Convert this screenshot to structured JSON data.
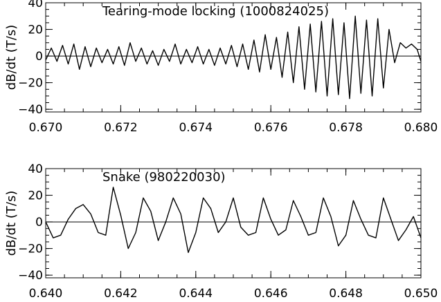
{
  "chart_data": [
    {
      "type": "line",
      "title": "Tearing-mode locking (1000824025)",
      "ylabel": "dB/dt (T/s)",
      "xlabel": "",
      "xlim": [
        0.67,
        0.68
      ],
      "ylim": [
        -42,
        40
      ],
      "yticks": [
        -40,
        -20,
        0,
        20,
        40
      ],
      "xticks": [
        0.67,
        0.672,
        0.674,
        0.676,
        0.678,
        0.68
      ],
      "xtick_labels": [
        "0.670",
        "0.672",
        "0.674",
        "0.676",
        "0.678",
        "0.680"
      ],
      "ytick_labels": [
        "−40",
        "−20",
        "0",
        "20",
        "40"
      ],
      "zero_line": true,
      "grid": false,
      "series": [
        {
          "x": [
            0.67,
            0.67015,
            0.6703,
            0.67045,
            0.6706,
            0.67075,
            0.6709,
            0.67105,
            0.6712,
            0.67135,
            0.6715,
            0.67165,
            0.6718,
            0.67195,
            0.6721,
            0.67225,
            0.6724,
            0.67255,
            0.6727,
            0.67285,
            0.673,
            0.67315,
            0.6733,
            0.67345,
            0.6736,
            0.67375,
            0.6739,
            0.67405,
            0.6742,
            0.67435,
            0.6745,
            0.67465,
            0.6748,
            0.67495,
            0.6751,
            0.67525,
            0.6754,
            0.67555,
            0.6757,
            0.67585,
            0.676,
            0.67615,
            0.6763,
            0.67645,
            0.6766,
            0.67675,
            0.6769,
            0.67705,
            0.6772,
            0.67735,
            0.6775,
            0.67765,
            0.6778,
            0.67795,
            0.6781,
            0.67825,
            0.6784,
            0.67855,
            0.6787,
            0.67885,
            0.679,
            0.67915,
            0.6793,
            0.67945,
            0.6796,
            0.67975,
            0.6799,
            0.68
          ],
          "values": [
            -3,
            6,
            -4,
            8,
            -6,
            9,
            -10,
            7,
            -8,
            6,
            -5,
            5,
            -6,
            7,
            -7,
            10,
            -4,
            6,
            -6,
            4,
            -7,
            5,
            -4,
            9,
            -6,
            5,
            -5,
            7,
            -6,
            5,
            -7,
            6,
            -6,
            8,
            -8,
            9,
            -10,
            12,
            -12,
            16,
            -10,
            14,
            -16,
            18,
            -20,
            22,
            -25,
            24,
            -27,
            26,
            -30,
            28,
            -29,
            25,
            -32,
            30,
            -28,
            27,
            -30,
            28,
            -24,
            20,
            -5,
            10,
            6,
            9,
            5,
            -4
          ]
        }
      ]
    },
    {
      "type": "line",
      "title": "Snake (980220030)",
      "ylabel": "dB/dt (T/s)",
      "xlabel": "",
      "xlim": [
        0.64,
        0.65
      ],
      "ylim": [
        -42,
        40
      ],
      "yticks": [
        -40,
        -20,
        0,
        20,
        40
      ],
      "xticks": [
        0.64,
        0.642,
        0.644,
        0.646,
        0.648,
        0.65
      ],
      "xtick_labels": [
        "0.640",
        "0.642",
        "0.644",
        "0.646",
        "0.648",
        "0.650"
      ],
      "ytick_labels": [
        "−40",
        "−20",
        "0",
        "20",
        "40"
      ],
      "zero_line": true,
      "grid": false,
      "series": [
        {
          "x": [
            0.64,
            0.6402,
            0.6404,
            0.6406,
            0.6408,
            0.641,
            0.6412,
            0.6414,
            0.6416,
            0.6418,
            0.642,
            0.6422,
            0.6424,
            0.6426,
            0.6428,
            0.643,
            0.6432,
            0.6434,
            0.6436,
            0.6438,
            0.644,
            0.6442,
            0.6444,
            0.6446,
            0.6448,
            0.645,
            0.6452,
            0.6454,
            0.6456,
            0.6458,
            0.646,
            0.6462,
            0.6464,
            0.6466,
            0.6468,
            0.647,
            0.6472,
            0.6474,
            0.6476,
            0.6478,
            0.648,
            0.6482,
            0.6484,
            0.6486,
            0.6488,
            0.649,
            0.6492,
            0.6494,
            0.6496,
            0.6498,
            0.65
          ],
          "values": [
            0,
            -12,
            -10,
            2,
            10,
            13,
            6,
            -8,
            -10,
            26,
            5,
            -20,
            -8,
            18,
            8,
            -14,
            0,
            18,
            6,
            -23,
            -8,
            18,
            10,
            -8,
            0,
            18,
            -4,
            -10,
            -8,
            18,
            2,
            -10,
            -6,
            16,
            4,
            -10,
            -8,
            18,
            4,
            -18,
            -10,
            16,
            2,
            -10,
            -12,
            18,
            2,
            -14,
            -6,
            4,
            -12
          ]
        }
      ]
    }
  ]
}
